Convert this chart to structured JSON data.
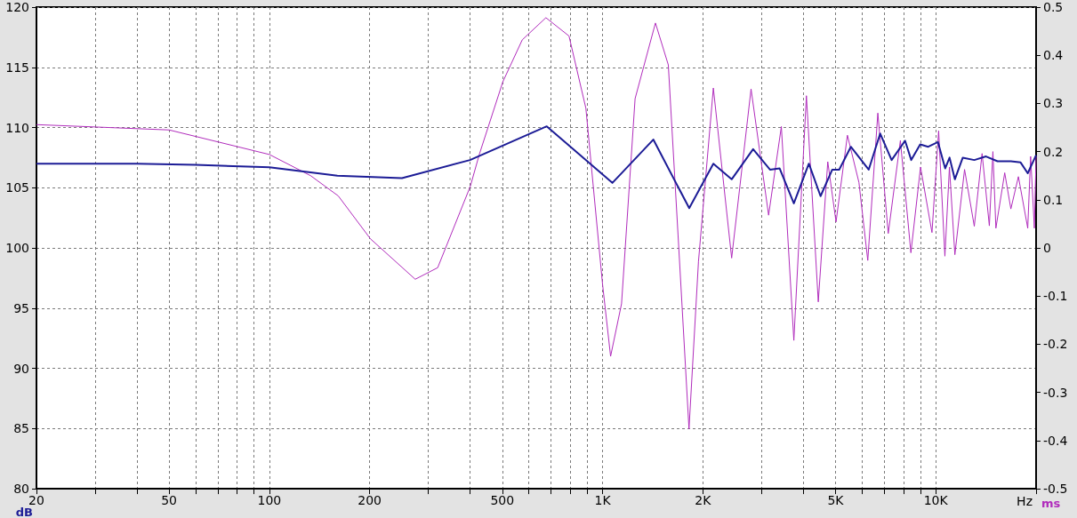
{
  "chart_data": {
    "type": "line",
    "xlabel": "Hz",
    "ylabel": "dB",
    "y2label": "ms",
    "log": "x",
    "grid": true,
    "marker": "none",
    "line_style": "solid",
    "xlim": [
      20,
      20000
    ],
    "xticks": [
      20,
      {
        "value": 30,
        "label": null
      },
      {
        "value": 40,
        "label": null
      },
      50,
      {
        "value": 60,
        "label": null
      },
      {
        "value": 70,
        "label": null
      },
      {
        "value": 80,
        "label": null
      },
      {
        "value": 90,
        "label": null
      },
      100,
      200,
      {
        "value": 300,
        "label": null
      },
      {
        "value": 400,
        "label": null
      },
      500,
      {
        "value": 600,
        "label": null
      },
      {
        "value": 700,
        "label": null
      },
      {
        "value": 800,
        "label": null
      },
      {
        "value": 900,
        "label": null
      },
      {
        "value": 1000,
        "label": "1K"
      },
      {
        "value": 2000,
        "label": "2K"
      },
      {
        "value": 3000,
        "label": null
      },
      {
        "value": 4000,
        "label": null
      },
      {
        "value": 5000,
        "label": "5K"
      },
      {
        "value": 6000,
        "label": null
      },
      {
        "value": 7000,
        "label": null
      },
      {
        "value": 8000,
        "label": null
      },
      {
        "value": 9000,
        "label": null
      },
      {
        "value": 10000,
        "label": "10K"
      },
      {
        "value": 20000,
        "label": null
      }
    ],
    "ylim": [
      80,
      120
    ],
    "yticks": [
      80,
      85,
      90,
      95,
      100,
      105,
      110,
      115,
      120
    ],
    "y2lim": [
      -0.5,
      0.5
    ],
    "y2ticks": [
      -0.5,
      -0.4,
      -0.3,
      -0.2,
      -0.1,
      0,
      0.1,
      0.2,
      0.3,
      0.4,
      0.5
    ],
    "series": [
      {
        "color": "#1c1c96",
        "x": [
          20,
          40,
          60,
          100,
          160,
          250,
          400,
          680,
          1070,
          1420,
          1820,
          2150,
          2440,
          2830,
          3180,
          3400,
          3750,
          4160,
          4510,
          4890,
          5130,
          5560,
          6290,
          6810,
          7370,
          8090,
          8440,
          8980,
          9490,
          10150,
          10670,
          11000,
          11410,
          12050,
          13050,
          14150,
          15320,
          16800,
          17970,
          18880,
          20000
        ],
        "values": [
          107.0,
          107.0,
          106.9,
          106.7,
          106.0,
          105.8,
          107.3,
          110.1,
          105.4,
          109.0,
          103.3,
          107.0,
          105.7,
          108.2,
          106.5,
          106.6,
          103.7,
          107.0,
          104.3,
          106.5,
          106.5,
          108.4,
          106.5,
          109.5,
          107.3,
          108.9,
          107.3,
          108.6,
          108.4,
          108.8,
          106.6,
          107.5,
          105.7,
          107.5,
          107.3,
          107.6,
          107.2,
          107.2,
          107.1,
          106.2,
          107.7
        ]
      },
      {
        "color": "#b02cbc",
        "axis": "y2",
        "x": [
          20,
          50,
          100,
          133,
          161,
          201,
          274,
          320,
          401,
          427,
          502,
          574,
          676,
          793,
          891,
          1000,
          1057,
          1140,
          1252,
          1441,
          1575,
          1685,
          1817,
          1940,
          2150,
          2440,
          2790,
          3150,
          3440,
          3750,
          4090,
          4440,
          4740,
          5020,
          5430,
          5880,
          6250,
          6700,
          7200,
          7830,
          8420,
          9000,
          9740,
          10200,
          10650,
          10990,
          11410,
          12200,
          13050,
          13770,
          14480,
          14840,
          15150,
          16100,
          16800,
          17700,
          18880,
          19260,
          19760,
          20000
        ],
        "values": [
          0.256,
          0.245,
          0.194,
          0.15,
          0.108,
          0.019,
          -0.065,
          -0.041,
          0.128,
          0.195,
          0.345,
          0.432,
          0.478,
          0.44,
          0.29,
          -0.076,
          -0.225,
          -0.116,
          0.31,
          0.467,
          0.38,
          0.026,
          -0.376,
          -0.028,
          0.332,
          -0.021,
          0.33,
          0.068,
          0.252,
          -0.192,
          0.316,
          -0.112,
          0.179,
          0.054,
          0.234,
          0.136,
          -0.026,
          0.28,
          0.03,
          0.223,
          -0.01,
          0.168,
          0.032,
          0.243,
          -0.017,
          0.168,
          -0.014,
          0.163,
          0.045,
          0.196,
          0.046,
          0.2,
          0.041,
          0.156,
          0.081,
          0.148,
          0.041,
          0.19,
          0.041,
          0.19
        ]
      }
    ]
  }
}
